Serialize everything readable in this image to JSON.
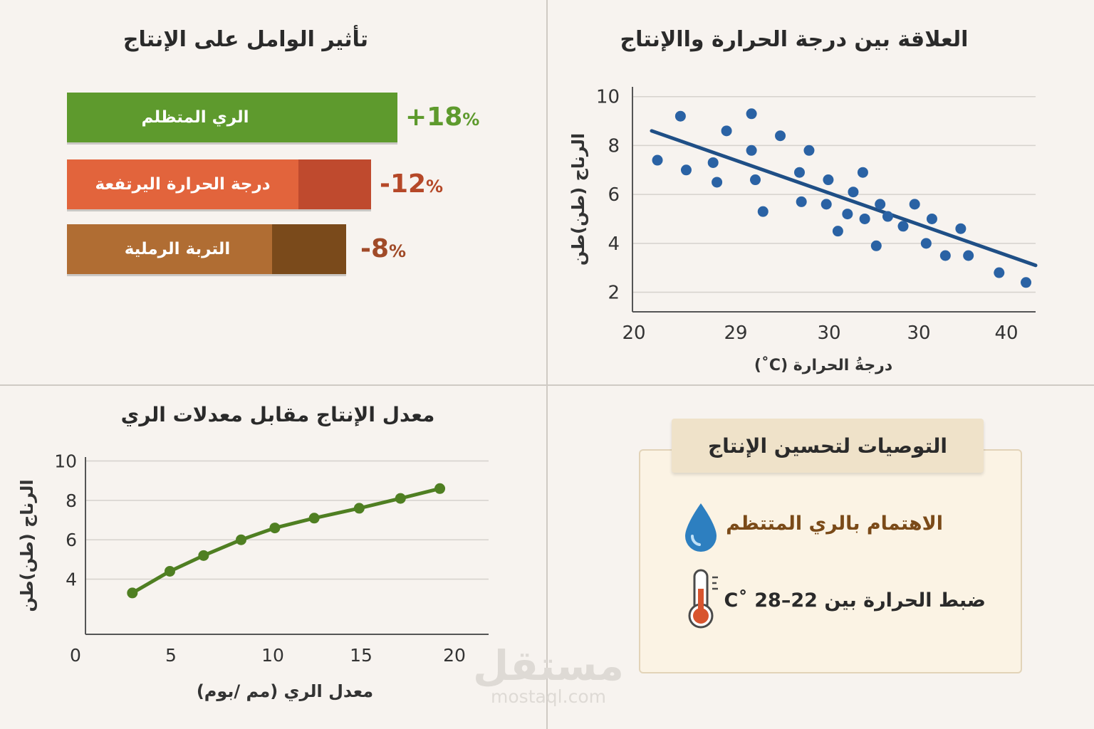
{
  "chart_data": [
    {
      "type": "bar",
      "title": "تأثير الوامل على الإنتاج",
      "categories": [
        "الري المتظلم",
        "درجة الحرارة اليرتفعة",
        "التربة الرملية"
      ],
      "values": [
        18,
        -12,
        -8
      ],
      "value_labels": [
        "+18",
        "-12",
        "-8"
      ],
      "unit": "%",
      "orientation": "horizontal",
      "colors": [
        "#5e9a2d",
        "#e2643c",
        "#b06d33"
      ]
    },
    {
      "type": "scatter",
      "title": "العلاقة بين درجة الحرارة واالإنتاج",
      "xlabel": "درجةُ الحرارة (C˚)",
      "ylabel": "الرناج (طن)طن",
      "x_tick_labels": [
        "20",
        "29",
        "30",
        "30",
        "40"
      ],
      "y_ticks": [
        2,
        4,
        6,
        8,
        10
      ],
      "ylim": [
        1.2,
        10.4
      ],
      "xlim": [
        20,
        41
      ],
      "grid": true,
      "point_color": "#2a62a4",
      "trend_color": "#1f4f86",
      "points": [
        {
          "x": 21.3,
          "y": 7.4
        },
        {
          "x": 22.5,
          "y": 9.2
        },
        {
          "x": 22.8,
          "y": 7.0
        },
        {
          "x": 24.2,
          "y": 7.3
        },
        {
          "x": 24.4,
          "y": 6.5
        },
        {
          "x": 24.9,
          "y": 8.6
        },
        {
          "x": 26.2,
          "y": 9.3
        },
        {
          "x": 26.2,
          "y": 7.8
        },
        {
          "x": 26.4,
          "y": 6.6
        },
        {
          "x": 26.8,
          "y": 5.3
        },
        {
          "x": 27.7,
          "y": 8.4
        },
        {
          "x": 28.7,
          "y": 6.9
        },
        {
          "x": 28.8,
          "y": 5.7
        },
        {
          "x": 29.2,
          "y": 7.8
        },
        {
          "x": 30.1,
          "y": 5.6
        },
        {
          "x": 30.2,
          "y": 6.6
        },
        {
          "x": 30.7,
          "y": 4.5
        },
        {
          "x": 31.2,
          "y": 5.2
        },
        {
          "x": 31.5,
          "y": 6.1
        },
        {
          "x": 32.0,
          "y": 6.9
        },
        {
          "x": 32.1,
          "y": 5.0
        },
        {
          "x": 32.7,
          "y": 3.9
        },
        {
          "x": 32.9,
          "y": 5.6
        },
        {
          "x": 33.3,
          "y": 5.1
        },
        {
          "x": 34.1,
          "y": 4.7
        },
        {
          "x": 34.7,
          "y": 5.6
        },
        {
          "x": 35.3,
          "y": 4.0
        },
        {
          "x": 35.6,
          "y": 5.0
        },
        {
          "x": 36.3,
          "y": 3.5
        },
        {
          "x": 37.1,
          "y": 4.6
        },
        {
          "x": 37.5,
          "y": 3.5
        },
        {
          "x": 39.1,
          "y": 2.8
        },
        {
          "x": 40.5,
          "y": 2.4
        }
      ],
      "trendline": [
        {
          "x": 21.0,
          "y": 8.6
        },
        {
          "x": 41.0,
          "y": 3.1
        }
      ]
    },
    {
      "type": "line",
      "title": "معدل الإنتاج مقابل معدلات الري",
      "xlabel": "معدل الري (مم /بوم)",
      "ylabel": "الرناج (طن)طن",
      "xlim": [
        0,
        21.5
      ],
      "ylim": [
        1.2,
        10.2
      ],
      "x_ticks": [
        0,
        5,
        10,
        15,
        20
      ],
      "y_ticks": [
        4,
        6,
        8,
        10
      ],
      "grid": true,
      "color": "#4f7f22",
      "x": [
        2.5,
        4.5,
        6.3,
        8.3,
        10.1,
        12.2,
        14.6,
        16.8,
        18.9
      ],
      "y": [
        3.3,
        4.4,
        5.2,
        6.0,
        6.6,
        7.1,
        7.6,
        8.1,
        8.6
      ]
    }
  ],
  "recommendations": {
    "title": "التوصيات لتحسين الإنتاج",
    "items": [
      "الاهتمام بالري المتتظم",
      "ضبط الحرارة بين C˚ 28–22"
    ]
  },
  "watermark": {
    "arabic": "مستقل",
    "latin": "mostaql.com"
  }
}
